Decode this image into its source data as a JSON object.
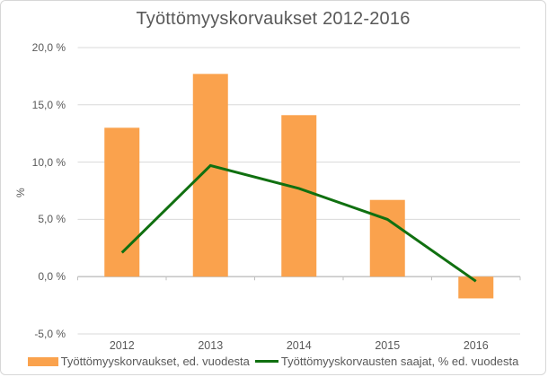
{
  "title": "Työttömyyskorvaukset 2012-2016",
  "chart_data": {
    "type": "bar",
    "categories": [
      "2012",
      "2013",
      "2014",
      "2015",
      "2016"
    ],
    "series": [
      {
        "name": "Työttömyyskorvaukset, ed. vuodesta",
        "type": "bar",
        "color": "#FAA24D",
        "values": [
          13.0,
          17.7,
          14.1,
          6.7,
          -1.9
        ]
      },
      {
        "name": "Työttömyyskorvausten saajat, % ed. vuodesta",
        "type": "line",
        "color": "#107010",
        "values": [
          2.1,
          9.7,
          7.7,
          5.0,
          -0.4
        ]
      }
    ],
    "xlabel": "",
    "ylabel": "%",
    "ylim": [
      -5,
      20
    ],
    "ytick_step": 5,
    "ytick_labels": [
      "20,0 %",
      "15,0 %",
      "10,0 %",
      "5,0 %",
      "0,0 %",
      "-5,0 %"
    ],
    "grid": true,
    "legend_position": "bottom"
  },
  "colors": {
    "background": "#FFFFFF",
    "title_text": "#595959",
    "axis_text": "#595959",
    "gridline": "#D9D9D9",
    "axis_line": "#BFBFBF",
    "frame_border": "#D7D7D7",
    "bar_series": "#FAA24D",
    "line_series": "#107010"
  }
}
